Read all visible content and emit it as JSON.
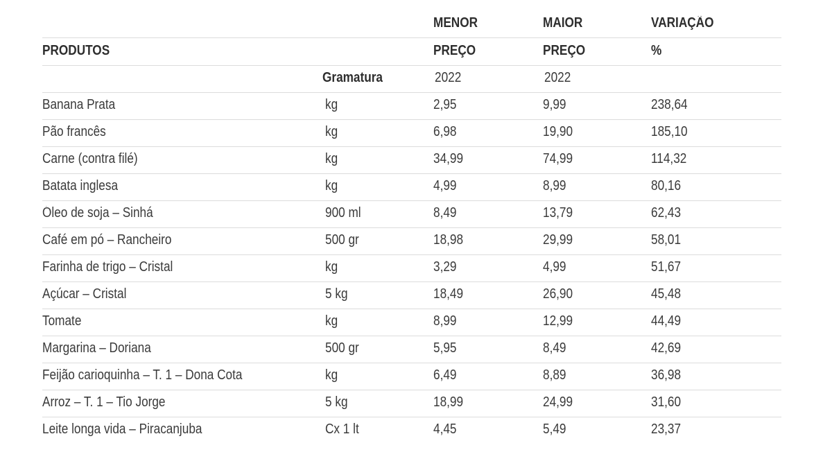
{
  "header": {
    "products_label": "PRODUTOS",
    "grammage_label": "Gramatura",
    "min_price_line1": "MENOR",
    "min_price_line2": "PREÇO",
    "max_price_line1": "MAIOR",
    "max_price_line2": "PREÇO",
    "variation_line1": "VARIAÇÃO",
    "variation_line2": "%",
    "min_year": "2022",
    "max_year": "2022"
  },
  "rows": [
    {
      "product": "Banana Prata",
      "grammage": "kg",
      "min": "2,95",
      "max": "9,99",
      "variation": "238,64"
    },
    {
      "product": "Pão francês",
      "grammage": "kg",
      "min": "6,98",
      "max": "19,90",
      "variation": "185,10"
    },
    {
      "product": "Carne (contra filé)",
      "grammage": "kg",
      "min": "34,99",
      "max": "74,99",
      "variation": "114,32"
    },
    {
      "product": "Batata inglesa",
      "grammage": "kg",
      "min": "4,99",
      "max": "8,99",
      "variation": "80,16"
    },
    {
      "product": "Óleo de soja – Sinhá",
      "grammage": "900 ml",
      "min": "8,49",
      "max": "13,79",
      "variation": "62,43"
    },
    {
      "product": "Café em pó – Rancheiro",
      "grammage": "500 gr",
      "min": "18,98",
      "max": "29,99",
      "variation": "58,01"
    },
    {
      "product": "Farinha de trigo – Cristal",
      "grammage": "kg",
      "min": "3,29",
      "max": "4,99",
      "variation": "51,67"
    },
    {
      "product": "Açúcar – Cristal",
      "grammage": "5 kg",
      "min": "18,49",
      "max": "26,90",
      "variation": "45,48"
    },
    {
      "product": "Tomate",
      "grammage": "kg",
      "min": "8,99",
      "max": "12,99",
      "variation": "44,49"
    },
    {
      "product": "Margarina – Doriana",
      "grammage": "500 gr",
      "min": "5,95",
      "max": "8,49",
      "variation": "42,69"
    },
    {
      "product": "Feijão carioquinha – T. 1 – Dona Cota",
      "grammage": "kg",
      "min": "6,49",
      "max": "8,89",
      "variation": "36,98"
    },
    {
      "product": "Arroz – T. 1 – Tio Jorge",
      "grammage": "5 kg",
      "min": "18,99",
      "max": "24,99",
      "variation": "31,60"
    },
    {
      "product": "Leite longa vida – Piracanjuba",
      "grammage": "Cx 1 lt",
      "min": "4,45",
      "max": "5,49",
      "variation": "23,37"
    }
  ]
}
